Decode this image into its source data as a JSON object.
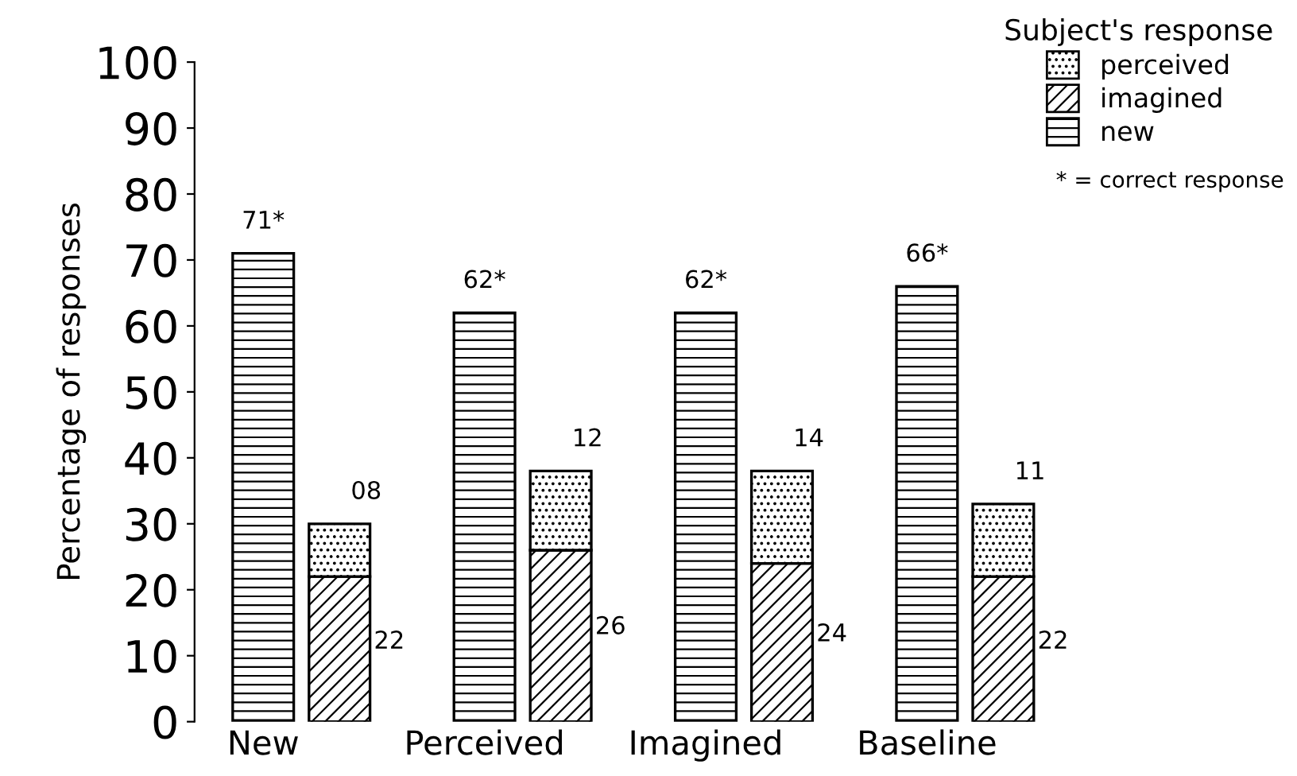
{
  "chart_data": {
    "type": "bar",
    "stacked": true,
    "ylabel": "Percentage of responses",
    "legend_title": "Subject's response",
    "legend": "top right",
    "categories": [
      "New",
      null,
      "Perceived",
      null,
      "Imagined",
      null,
      "Baseline",
      null
    ],
    "series": [
      {
        "name": "new",
        "color": "#000000",
        "values": [
          71,
          null,
          62,
          null,
          62,
          null,
          66,
          null
        ],
        "value_labels": [
          "71*",
          null,
          "62*",
          null,
          "62*",
          null,
          "66*",
          null
        ]
      },
      {
        "name": "imagined",
        "color": "#000000",
        "values": [
          null,
          22,
          null,
          26,
          null,
          24,
          null,
          22
        ],
        "value_labels": [
          null,
          "22",
          null,
          "26",
          null,
          "24",
          null,
          "22"
        ]
      },
      {
        "name": "perceived",
        "color": "#000000",
        "values": [
          null,
          8,
          null,
          12,
          null,
          14,
          null,
          11
        ],
        "value_labels": [
          null,
          "08",
          null,
          "12",
          null,
          "14",
          null,
          "11"
        ]
      }
    ],
    "ylim": [
      0,
      100
    ],
    "yticks": [
      0,
      10,
      20,
      30,
      40,
      50,
      60,
      70,
      80,
      90,
      100
    ],
    "annotations": [
      "* = correct response"
    ]
  }
}
